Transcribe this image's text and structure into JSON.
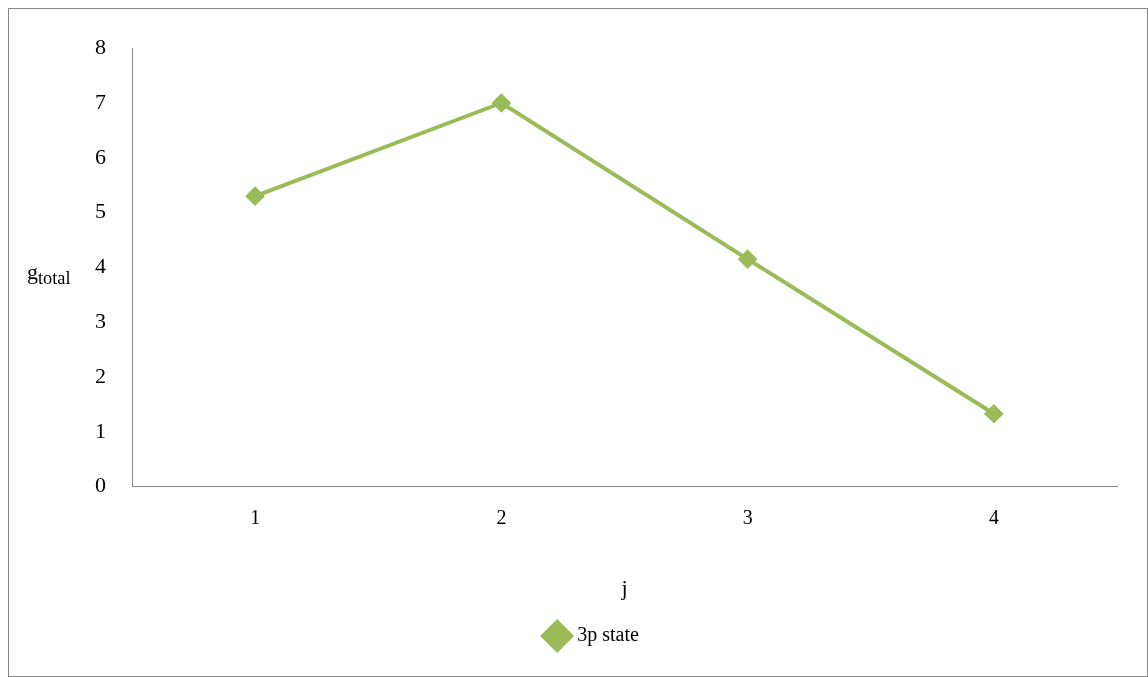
{
  "chart_data": {
    "type": "line",
    "xlabel": "j",
    "ylabel": "g$_{total}$",
    "categories": [
      "1",
      "2",
      "3",
      "4"
    ],
    "series": [
      {
        "name": "3p state",
        "color": "#9bbb59",
        "values": [
          5.3,
          7.0,
          4.15,
          1.33
        ]
      }
    ],
    "ylim": [
      0,
      8
    ],
    "yticks": [
      0,
      1,
      2,
      3,
      4,
      5,
      6,
      7,
      8
    ],
    "grid": false,
    "legend": "bottom",
    "marker": "diamond",
    "line_style": "solid"
  }
}
